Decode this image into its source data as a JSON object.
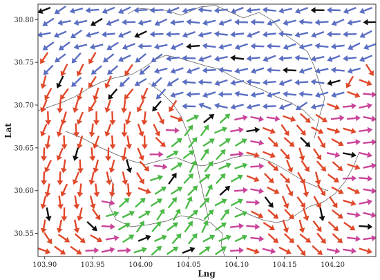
{
  "chart_data": {
    "type": "quiver",
    "title": "",
    "xlabel": "Lng",
    "ylabel": "Lat",
    "xlim": [
      103.893,
      104.245
    ],
    "ylim": [
      30.523,
      30.818
    ],
    "x_ticks": [
      {
        "value": 103.9,
        "label": "103.90"
      },
      {
        "value": 103.95,
        "label": "103.95"
      },
      {
        "value": 104.0,
        "label": "104.00"
      },
      {
        "value": 104.05,
        "label": "104.05"
      },
      {
        "value": 104.1,
        "label": "104.10"
      },
      {
        "value": 104.15,
        "label": "104.15"
      },
      {
        "value": 104.2,
        "label": "104.20"
      }
    ],
    "y_ticks": [
      {
        "value": 30.55,
        "label": "30.55"
      },
      {
        "value": 30.6,
        "label": "30.60"
      },
      {
        "value": 30.65,
        "label": "30.65"
      },
      {
        "value": 30.7,
        "label": "30.70"
      },
      {
        "value": 30.75,
        "label": "30.75"
      },
      {
        "value": 30.8,
        "label": "30.80"
      }
    ],
    "grid": false,
    "legend": null,
    "arrow_colors": {
      "blue": "#5b6fc2",
      "green": "#4bb947",
      "red": "#e0482a",
      "magenta": "#c9449a",
      "black": "#111111"
    },
    "boundary_color": "#555555",
    "field_description": "Regular grid of direction arrows over a city map outline; upper area flows leftward (west), left-center flows downward, lower-center flows up-right (green), right-center flows down-right (red), far right column flows east.",
    "sample_vectors": [
      {
        "lng": 103.91,
        "lat": 30.8,
        "angle_deg": 130,
        "color": "black"
      },
      {
        "lng": 104.03,
        "lat": 30.78,
        "angle_deg": 190,
        "color": "blue"
      },
      {
        "lng": 104.08,
        "lat": 30.75,
        "angle_deg": 180,
        "color": "blue"
      },
      {
        "lng": 103.93,
        "lat": 30.7,
        "angle_deg": 260,
        "color": "blue"
      },
      {
        "lng": 104.02,
        "lat": 30.63,
        "angle_deg": 45,
        "color": "green"
      },
      {
        "lng": 104.05,
        "lat": 30.6,
        "angle_deg": 85,
        "color": "green"
      },
      {
        "lng": 104.12,
        "lat": 30.63,
        "angle_deg": 285,
        "color": "red"
      },
      {
        "lng": 104.21,
        "lat": 30.72,
        "angle_deg": 0,
        "color": "red"
      },
      {
        "lng": 103.98,
        "lat": 30.54,
        "angle_deg": 0,
        "color": "blue"
      },
      {
        "lng": 104.23,
        "lat": 30.56,
        "angle_deg": 310,
        "color": "red"
      }
    ]
  }
}
